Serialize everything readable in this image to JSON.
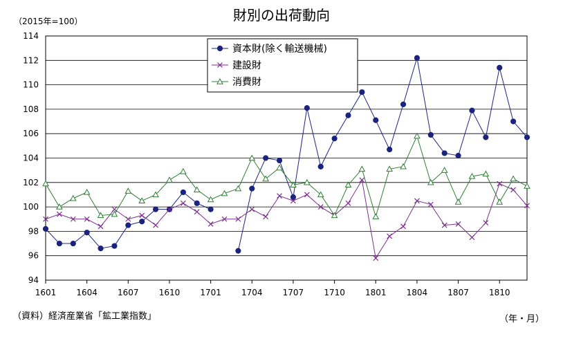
{
  "title": "財別の出荷動向",
  "unit_label": "（2015年=100）",
  "source_label": "（資料）経済産業省「鉱工業指数」",
  "x_unit_label": "（年・月）",
  "colors": {
    "capital": "#1a237e",
    "construction": "#7b2d8e",
    "consumer": "#2e7d32"
  },
  "chart_data": {
    "type": "line",
    "x_tick_labels": [
      "1601",
      "1604",
      "1607",
      "1610",
      "1701",
      "1704",
      "1707",
      "1710",
      "1801",
      "1804",
      "1807",
      "1810"
    ],
    "y_ticks": [
      94,
      96,
      98,
      100,
      102,
      104,
      106,
      108,
      110,
      112,
      114
    ],
    "ylim": [
      94,
      114
    ],
    "grid": true,
    "legend_position": "top-center",
    "x": [
      "1601",
      "1602",
      "1603",
      "1604",
      "1605",
      "1606",
      "1607",
      "1608",
      "1609",
      "1610",
      "1611",
      "1612",
      "1701",
      "1702",
      "1703",
      "1704",
      "1705",
      "1706",
      "1707",
      "1708",
      "1709",
      "1710",
      "1711",
      "1712",
      "1801",
      "1802",
      "1803",
      "1804",
      "1805",
      "1806",
      "1807",
      "1808",
      "1809",
      "1810",
      "1811",
      "1812"
    ],
    "series": [
      {
        "name": "資本財(除く輸送機械)",
        "marker": "circle",
        "color": "#1a237e",
        "values": [
          98.2,
          97.0,
          97.0,
          97.9,
          96.6,
          96.8,
          98.5,
          98.8,
          99.8,
          99.8,
          101.2,
          100.3,
          99.8,
          null,
          96.4,
          101.5,
          104.0,
          103.8,
          100.8,
          108.1,
          103.3,
          105.6,
          107.5,
          109.4,
          107.1,
          104.7,
          108.4,
          112.2,
          105.9,
          104.4,
          104.2,
          107.9,
          105.7,
          111.4,
          107.0,
          105.7
        ]
      },
      {
        "name": "建設財",
        "marker": "cross",
        "color": "#7b2d8e",
        "values": [
          99.0,
          99.4,
          99.0,
          99.0,
          98.4,
          99.8,
          99.0,
          99.3,
          98.5,
          99.8,
          100.3,
          99.6,
          98.6,
          99.0,
          99.0,
          99.8,
          99.2,
          100.9,
          100.5,
          101.0,
          100.0,
          99.3,
          100.3,
          102.2,
          95.8,
          97.6,
          98.4,
          100.5,
          100.2,
          98.5,
          98.6,
          97.5,
          98.7,
          101.9,
          101.4,
          100.1
        ]
      },
      {
        "name": "消費財",
        "marker": "triangle",
        "color": "#2e7d32",
        "values": [
          101.9,
          100.0,
          100.7,
          101.2,
          99.3,
          99.4,
          101.3,
          100.5,
          101.0,
          102.2,
          102.9,
          101.4,
          100.6,
          101.1,
          101.5,
          104.0,
          102.3,
          103.2,
          101.8,
          102.0,
          101.0,
          99.3,
          101.8,
          103.1,
          99.2,
          103.1,
          103.3,
          105.8,
          102.0,
          103.0,
          100.4,
          102.5,
          102.7,
          100.4,
          102.3,
          101.7
        ]
      }
    ]
  }
}
